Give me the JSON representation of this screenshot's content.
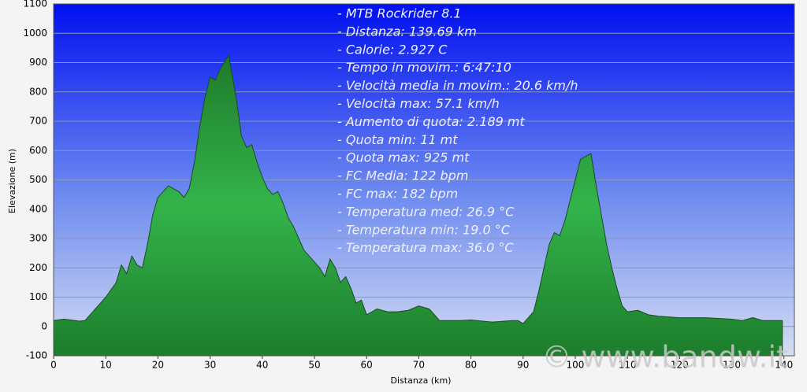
{
  "chart_data": {
    "type": "area",
    "xlabel": "Distanza   (km)",
    "ylabel": "Elevazione (m)",
    "annotations": [
      "- MTB Rockrider 8.1",
      "- Distanza: 139.69 km",
      "- Calorie: 2.927 C",
      "- Tempo in movim.: 6:47:10",
      "- Velocità media in movim.: 20.6 km/h",
      "- Velocità max: 57.1 km/h",
      "- Aumento di quota: 2.189 mt",
      "- Quota min: 11 mt",
      "- Quota max: 925 mt",
      "- FC Media: 122 bpm",
      "- FC max: 182 bpm",
      "- Temperatura med: 26.9 °C",
      "- Temperatura min: 19.0 °C",
      "- Temperatura max: 36.0 °C"
    ],
    "watermark": "© www.bandw.it",
    "x": [
      0,
      2,
      5,
      6,
      8,
      10,
      12,
      13,
      14,
      15,
      16,
      17,
      18,
      19,
      20,
      22,
      24,
      25,
      26,
      27,
      28,
      29,
      30,
      31,
      32,
      33,
      33.6,
      34,
      35,
      36,
      37,
      38,
      39,
      40,
      41,
      42,
      43,
      44,
      45,
      46,
      47,
      48,
      50,
      51,
      52,
      53,
      54,
      55,
      56,
      57,
      58,
      59,
      60,
      61,
      62,
      64,
      66,
      68,
      70,
      72,
      73,
      74,
      76,
      78,
      80,
      84,
      88,
      89,
      90,
      92,
      93,
      94,
      95,
      96,
      97,
      98,
      99,
      100,
      101,
      102,
      103,
      104,
      105,
      106,
      107,
      108,
      109,
      110,
      112,
      114,
      116,
      120,
      125,
      130,
      132,
      134,
      136,
      139.69
    ],
    "values": [
      20,
      25,
      18,
      20,
      60,
      100,
      150,
      210,
      180,
      240,
      210,
      200,
      280,
      380,
      440,
      480,
      460,
      440,
      470,
      560,
      680,
      780,
      850,
      840,
      880,
      910,
      925,
      880,
      780,
      650,
      610,
      620,
      560,
      510,
      470,
      450,
      460,
      420,
      370,
      340,
      300,
      260,
      220,
      200,
      170,
      230,
      200,
      150,
      170,
      130,
      80,
      90,
      40,
      50,
      60,
      50,
      50,
      55,
      70,
      60,
      40,
      20,
      20,
      20,
      22,
      15,
      20,
      20,
      10,
      50,
      120,
      200,
      280,
      320,
      310,
      360,
      430,
      500,
      570,
      580,
      590,
      480,
      380,
      280,
      200,
      130,
      70,
      50,
      55,
      40,
      35,
      30,
      30,
      25,
      20,
      30,
      20,
      20
    ],
    "color": "#2a9a3c",
    "xlim": [
      0,
      142
    ],
    "ylim": [
      -100,
      1100
    ],
    "xticks": [
      0,
      10,
      20,
      30,
      40,
      50,
      60,
      70,
      80,
      90,
      100,
      110,
      120,
      130,
      140
    ],
    "yticks": [
      -100,
      0,
      100,
      200,
      300,
      400,
      500,
      600,
      700,
      800,
      900,
      1000,
      1100
    ],
    "grid": true
  }
}
